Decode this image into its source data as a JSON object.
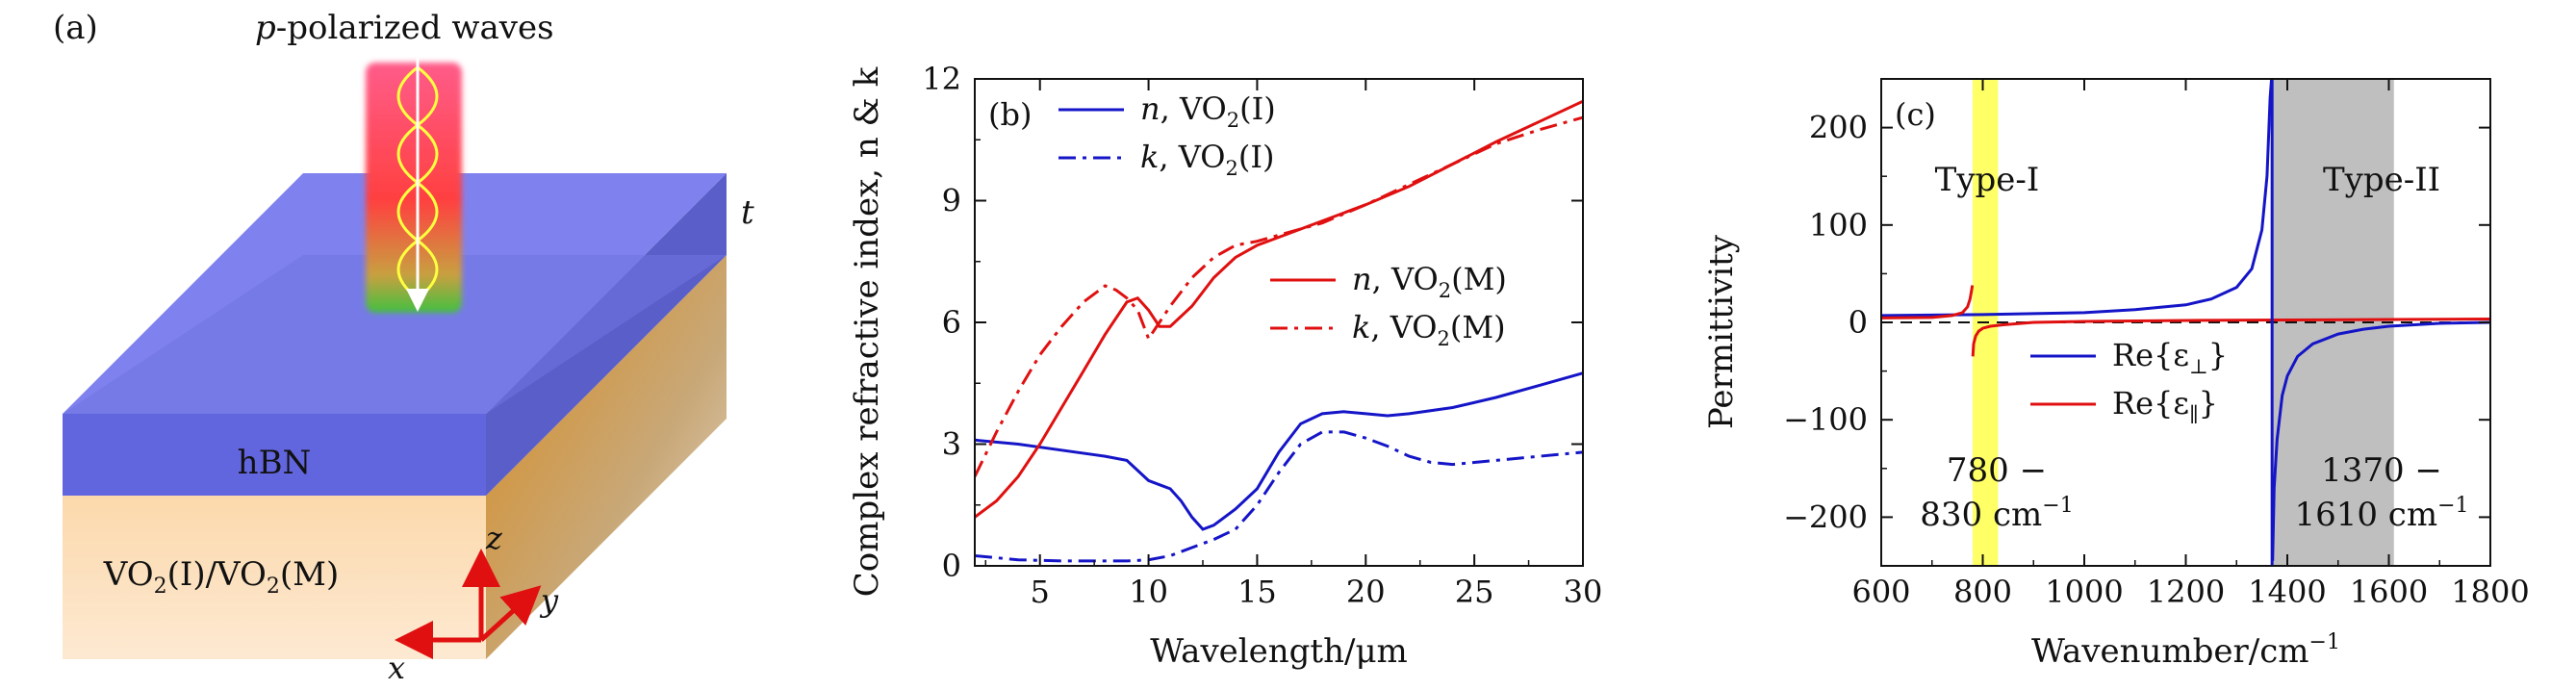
{
  "panel_a": {
    "label": "(a)",
    "wave_title_italic": "p",
    "wave_title": "-polarized waves",
    "layer_top": "hBN",
    "layer_bottom": "VO",
    "layer_bottom_sub1": "2",
    "layer_bottom_mid": "(I)/VO",
    "layer_bottom_sub2": "2",
    "layer_bottom_end": "(M)",
    "thickness_label": "t",
    "axis_x": "x",
    "axis_y": "y",
    "axis_z": "z",
    "colors": {
      "hbn": "#6d72e6",
      "vo2_light": "#fde2bf",
      "vo2_dark": "#d98a1c",
      "beam": "#ff4a5a",
      "wave": "#ffff40",
      "axes": "#e01010"
    }
  },
  "chart_data": [
    {
      "panel": "(b)",
      "type": "line",
      "xlabel": "Wavelength/μm",
      "ylabel": "Complex refractive index, n & k",
      "xlim": [
        2,
        30
      ],
      "ylim": [
        0,
        12
      ],
      "xticks": [
        5,
        10,
        15,
        20,
        25,
        30
      ],
      "yticks": [
        0,
        3,
        6,
        9,
        12
      ],
      "legend": [
        {
          "sym": "n",
          "text": ", VO",
          "sub": "2",
          "end": "(I)",
          "series": 0
        },
        {
          "sym": "k",
          "text": ", VO",
          "sub": "2",
          "end": "(I)",
          "series": 1
        },
        {
          "sym": "n",
          "text": ", VO",
          "sub": "2",
          "end": "(M)",
          "series": 2
        },
        {
          "sym": "k",
          "text": ", VO",
          "sub": "2",
          "end": "(M)",
          "series": 3
        }
      ],
      "series": [
        {
          "color": "#1515c8",
          "dash": "solid",
          "x": [
            2,
            4,
            6,
            8,
            9,
            10,
            10.5,
            11,
            11.5,
            12,
            12.5,
            13,
            14,
            15,
            16,
            17,
            18,
            19,
            20,
            21,
            22,
            24,
            26,
            28,
            30
          ],
          "y": [
            3.1,
            3.0,
            2.85,
            2.7,
            2.6,
            2.1,
            2.0,
            1.9,
            1.6,
            1.2,
            0.9,
            1.0,
            1.4,
            1.9,
            2.8,
            3.5,
            3.75,
            3.8,
            3.75,
            3.7,
            3.75,
            3.9,
            4.15,
            4.45,
            4.75
          ]
        },
        {
          "color": "#1515c8",
          "dash": "dashdot",
          "x": [
            2,
            4,
            6,
            8,
            9,
            10,
            11,
            12,
            13,
            14,
            15,
            16,
            17,
            18,
            19,
            20,
            21,
            22,
            23,
            24,
            25,
            26,
            28,
            30
          ],
          "y": [
            0.25,
            0.15,
            0.12,
            0.12,
            0.12,
            0.15,
            0.25,
            0.45,
            0.65,
            0.9,
            1.5,
            2.3,
            3.0,
            3.3,
            3.3,
            3.15,
            2.95,
            2.7,
            2.55,
            2.5,
            2.55,
            2.6,
            2.7,
            2.8
          ]
        },
        {
          "color": "#e01010",
          "dash": "solid",
          "x": [
            2,
            3,
            4,
            5,
            6,
            7,
            8,
            9,
            9.5,
            10,
            10.5,
            11,
            12,
            13,
            14,
            15,
            16,
            18,
            20,
            22,
            24,
            26,
            28,
            30
          ],
          "y": [
            1.2,
            1.6,
            2.2,
            3.0,
            3.9,
            4.8,
            5.7,
            6.5,
            6.6,
            6.3,
            5.9,
            5.9,
            6.4,
            7.1,
            7.6,
            7.9,
            8.1,
            8.5,
            8.9,
            9.35,
            9.9,
            10.45,
            10.95,
            11.45
          ]
        },
        {
          "color": "#e01010",
          "dash": "dashdot",
          "x": [
            2,
            3,
            4,
            5,
            6,
            7,
            8,
            8.5,
            9,
            9.5,
            10,
            10.5,
            11,
            12,
            13,
            14,
            15,
            16,
            18,
            20,
            22,
            24,
            26,
            28,
            30
          ],
          "y": [
            2.2,
            3.3,
            4.3,
            5.2,
            5.9,
            6.5,
            6.9,
            6.8,
            6.6,
            6.3,
            5.6,
            6.0,
            6.4,
            7.1,
            7.6,
            7.9,
            8.0,
            8.15,
            8.45,
            8.9,
            9.4,
            9.9,
            10.4,
            10.75,
            11.05
          ]
        }
      ]
    },
    {
      "panel": "(c)",
      "type": "line",
      "xlabel": "Wavenumber/cm",
      "xlabel_sup": "−1",
      "ylabel": "Permittivity",
      "xlim": [
        600,
        1800
      ],
      "ylim": [
        -250,
        250
      ],
      "xticks": [
        600,
        800,
        1000,
        1200,
        1400,
        1600,
        1800
      ],
      "yticks": [
        -200,
        -100,
        0,
        100,
        200
      ],
      "bands": [
        {
          "name": "Type-I",
          "from": 780,
          "to": 830,
          "color": "#ffff66",
          "range_line1": "780 −",
          "range_line2": "830 cm",
          "range_sup": "−1"
        },
        {
          "name": "Type-II",
          "from": 1370,
          "to": 1610,
          "color": "#bfbfbf",
          "range_line1": "1370 −",
          "range_line2": "1610 cm",
          "range_sup": "−1"
        }
      ],
      "zero_line": true,
      "legend": [
        {
          "text": "Re{ε",
          "sub": "⊥",
          "end": "}",
          "series": 0
        },
        {
          "text": "Re{ε",
          "sub": "∥",
          "end": "}",
          "series": 1
        }
      ],
      "series": [
        {
          "color": "#1515c8",
          "x": [
            600,
            700,
            800,
            900,
            1000,
            1100,
            1200,
            1250,
            1300,
            1330,
            1350,
            1360,
            1366,
            1369
          ],
          "y": [
            7,
            7.5,
            8,
            9,
            10,
            13,
            18,
            24,
            36,
            55,
            95,
            150,
            230,
            250
          ]
        },
        {
          "color": "#1515c8",
          "x": [
            1371,
            1374,
            1380,
            1390,
            1400,
            1420,
            1450,
            1500,
            1550,
            1600,
            1700,
            1800
          ],
          "y": [
            -245,
            -170,
            -120,
            -75,
            -55,
            -35,
            -22,
            -12,
            -7,
            -4,
            -1,
            0
          ]
        },
        {
          "color": "#e01010",
          "x": [
            600,
            700,
            740,
            760,
            770,
            775,
            778,
            779.5
          ],
          "y": [
            4.5,
            5,
            7,
            10,
            16,
            24,
            33,
            38
          ]
        },
        {
          "color": "#e01010",
          "x": [
            780.5,
            782,
            786,
            792,
            800,
            815,
            840,
            900,
            1000,
            1200,
            1400,
            1600,
            1800
          ],
          "y": [
            -35,
            -22,
            -14,
            -9,
            -6,
            -4,
            -2.5,
            0,
            1,
            2,
            2.5,
            3,
            3.5
          ]
        }
      ]
    }
  ]
}
